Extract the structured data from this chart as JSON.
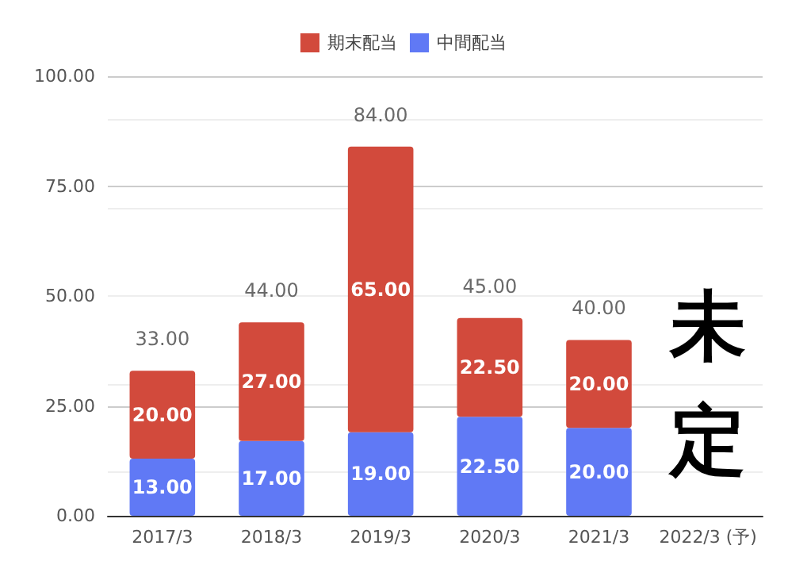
{
  "chart_data": {
    "type": "bar",
    "stacked": true,
    "categories": [
      "2017/3",
      "2018/3",
      "2019/3",
      "2020/3",
      "2021/3",
      "2022/3 (予)"
    ],
    "series": [
      {
        "name": "中間配当",
        "color": "#6079f5",
        "values": [
          13,
          17,
          19,
          22.5,
          20,
          null
        ],
        "value_labels": [
          "13.00",
          "17.00",
          "19.00",
          "22.50",
          "20.00",
          null
        ]
      },
      {
        "name": "期末配当",
        "color": "#d24a3c",
        "values": [
          20,
          27,
          65,
          22.5,
          20,
          null
        ],
        "value_labels": [
          "20.00",
          "27.00",
          "65.00",
          "22.50",
          "20.00",
          null
        ]
      }
    ],
    "totals": [
      "33.00",
      "44.00",
      "84.00",
      "45.00",
      "40.00",
      null
    ],
    "ylim": [
      0,
      100
    ],
    "yticks": [
      {
        "value": 0,
        "label": "0.00"
      },
      {
        "value": 25,
        "label": "25.00"
      },
      {
        "value": 50,
        "label": "50.00"
      },
      {
        "value": 75,
        "label": "75.00"
      },
      {
        "value": 100,
        "label": "100.00"
      }
    ],
    "grid": "y",
    "legend": "top",
    "annotations": [
      "未定"
    ]
  }
}
